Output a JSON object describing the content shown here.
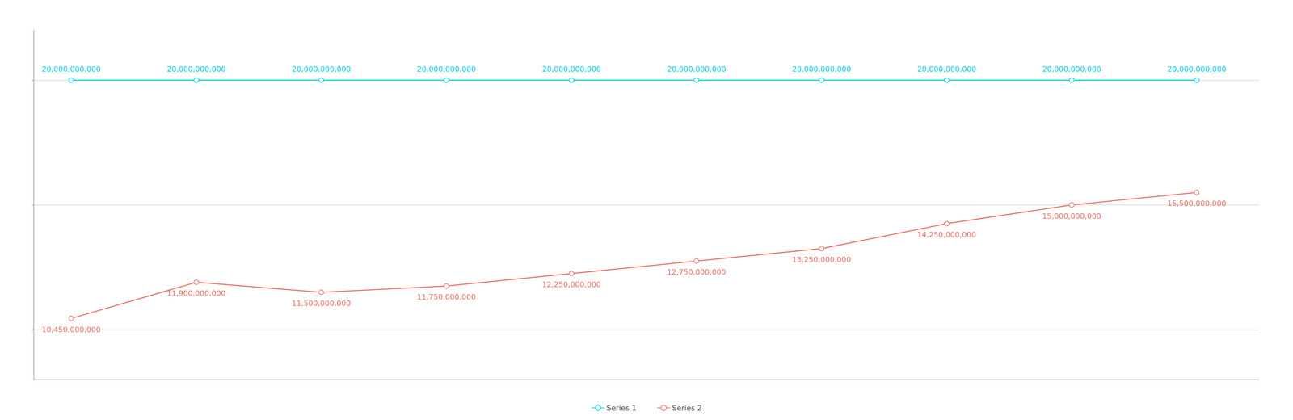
{
  "chart_data": {
    "type": "line",
    "x": [
      0,
      1,
      2,
      3,
      4,
      5,
      6,
      7,
      8,
      9
    ],
    "xlim": [
      -0.3,
      9.5
    ],
    "ylim": [
      8000000000,
      22000000000
    ],
    "yticks": [
      10000000000,
      15000000000,
      20000000000
    ],
    "grid": true,
    "tick_labels": false,
    "legend": "bottom",
    "data_labels": true,
    "marker": "circle",
    "series": [
      {
        "name": "Series 1",
        "color": "#00d4e8",
        "values": [
          20000000000,
          20000000000,
          20000000000,
          20000000000,
          20000000000,
          20000000000,
          20000000000,
          20000000000,
          20000000000,
          20000000000
        ],
        "value_labels": [
          "20,000,000,000",
          "20,000,000,000",
          "20,000,000,000",
          "20,000,000,000",
          "20,000,000,000",
          "20,000,000,000",
          "20,000,000,000",
          "20,000,000,000",
          "20,000,000,000",
          "20,000,000,000"
        ]
      },
      {
        "name": "Series 2",
        "color": "#e8756a",
        "values": [
          10450000000,
          11900000000,
          11500000000,
          11750000000,
          12250000000,
          12750000000,
          13250000000,
          14250000000,
          15000000000,
          15500000000
        ],
        "value_labels": [
          "10,450,000,000",
          "11,900,000,000",
          "11,500,000,000",
          "11,750,000,000",
          "12,250,000,000",
          "12,750,000,000",
          "13,250,000,000",
          "14,250,000,000",
          "15,000,000,000",
          "15,500,000,000"
        ]
      }
    ]
  }
}
